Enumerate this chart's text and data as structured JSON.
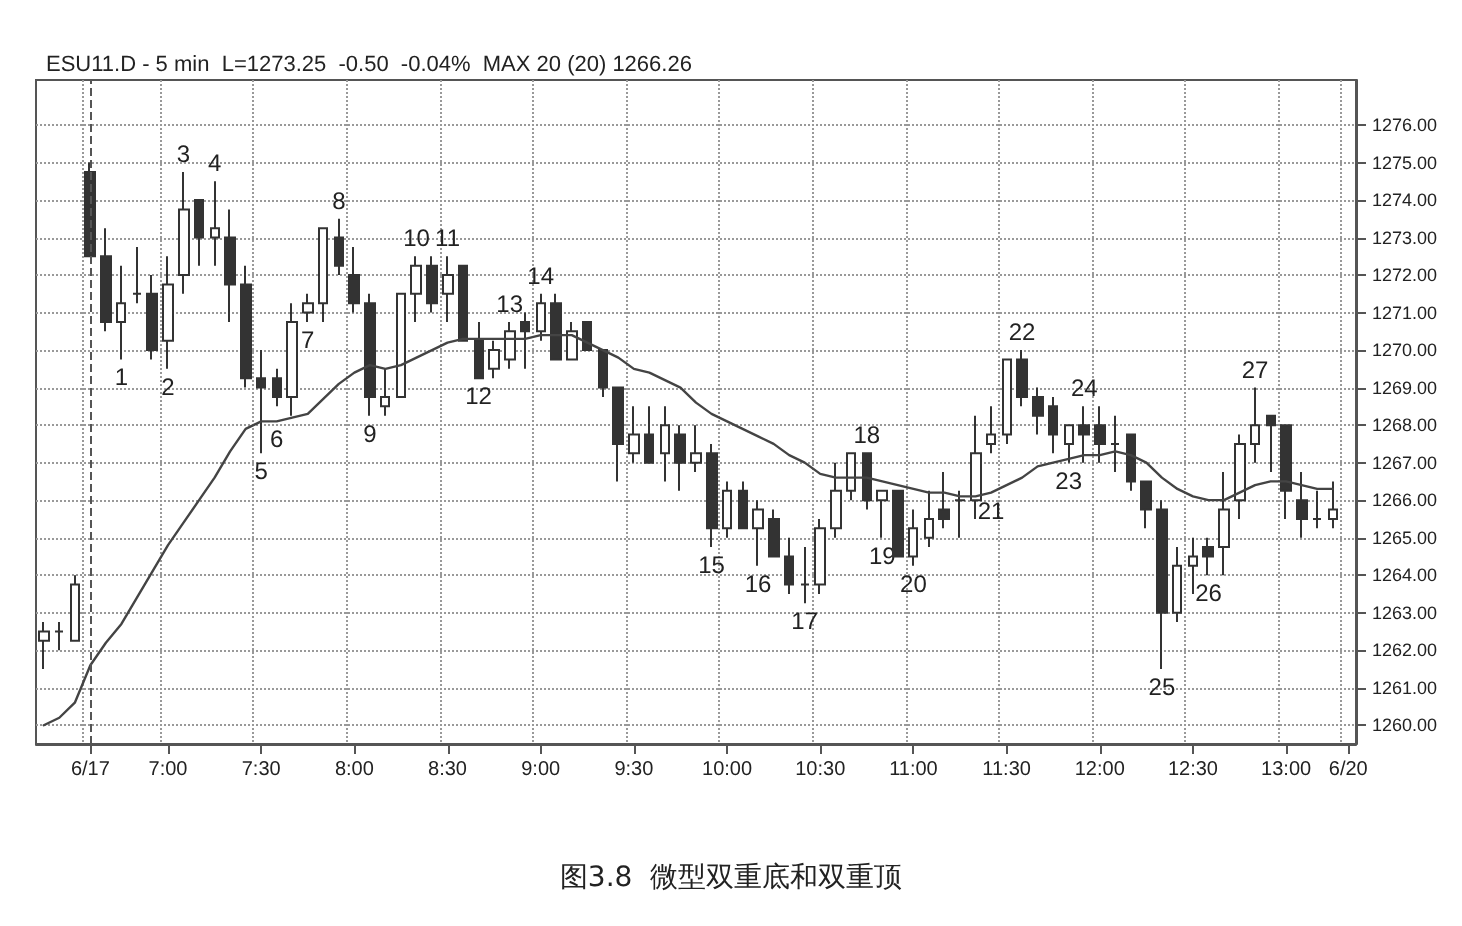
{
  "chart_data": {
    "type": "candlestick",
    "title": "图3.8  微型双重底和双重顶",
    "subtitle": "ESU11.D - 5 min  L=1273.25  -0.50  -0.04%  MAX 20 (20) 1266.26",
    "categories": [
      null,
      null,
      null,
      "6/17",
      null,
      null,
      null,
      null,
      "7:00",
      null,
      null,
      null,
      null,
      null,
      "7:30",
      null,
      null,
      null,
      null,
      null,
      "8:00",
      null,
      null,
      null,
      null,
      null,
      "8:30",
      null,
      null,
      null,
      null,
      null,
      "9:00",
      null,
      null,
      null,
      null,
      null,
      "9:30",
      null,
      null,
      null,
      null,
      null,
      "10:00",
      null,
      null,
      null,
      null,
      null,
      "10:30",
      null,
      null,
      null,
      null,
      null,
      "11:00",
      null,
      null,
      null,
      null,
      null,
      "11:30",
      null,
      null,
      null,
      null,
      null,
      "12:00",
      null,
      null,
      null,
      null,
      null,
      "12:30",
      null,
      null,
      null,
      null,
      null,
      "13:00",
      null,
      null,
      null,
      "6/20"
    ],
    "color": "#333333",
    "ohlc": [
      [
        1262.25,
        1262.75,
        1261.5,
        1262.5
      ],
      [
        1262.5,
        1262.75,
        1262.0,
        1262.5
      ],
      [
        1262.25,
        1264.0,
        1262.25,
        1263.75
      ],
      [
        1274.75,
        1275.0,
        1272.5,
        1272.5
      ],
      [
        1272.5,
        1273.25,
        1270.5,
        1270.75
      ],
      [
        1270.75,
        1272.25,
        1269.75,
        1271.25
      ],
      [
        1271.5,
        1272.75,
        1271.25,
        1271.5
      ],
      [
        1271.5,
        1272.0,
        1269.75,
        1270.0
      ],
      [
        1270.25,
        1272.5,
        1269.5,
        1271.75
      ],
      [
        1272.0,
        1274.75,
        1271.5,
        1273.75
      ],
      [
        1274.0,
        1274.0,
        1272.25,
        1273.0
      ],
      [
        1273.0,
        1274.5,
        1272.25,
        1273.25
      ],
      [
        1273.0,
        1273.75,
        1270.75,
        1271.75
      ],
      [
        1271.75,
        1272.25,
        1269.0,
        1269.25
      ],
      [
        1269.25,
        1270.0,
        1267.25,
        1269.0
      ],
      [
        1269.25,
        1269.5,
        1268.5,
        1268.75
      ],
      [
        1268.75,
        1271.25,
        1268.25,
        1270.75
      ],
      [
        1271.0,
        1271.5,
        1270.75,
        1271.25
      ],
      [
        1271.25,
        1273.25,
        1270.75,
        1273.25
      ],
      [
        1273.0,
        1273.5,
        1272.0,
        1272.25
      ],
      [
        1272.0,
        1272.75,
        1271.0,
        1271.25
      ],
      [
        1271.25,
        1271.5,
        1268.25,
        1268.75
      ],
      [
        1268.5,
        1269.5,
        1268.25,
        1268.75
      ],
      [
        1268.75,
        1271.5,
        1268.75,
        1271.5
      ],
      [
        1271.5,
        1272.5,
        1270.75,
        1272.25
      ],
      [
        1272.25,
        1272.5,
        1271.0,
        1271.25
      ],
      [
        1271.5,
        1272.5,
        1270.75,
        1272.0
      ],
      [
        1272.25,
        1272.25,
        1270.25,
        1270.25
      ],
      [
        1270.25,
        1270.75,
        1269.25,
        1269.25
      ],
      [
        1269.5,
        1270.25,
        1269.25,
        1270.0
      ],
      [
        1269.75,
        1270.75,
        1269.5,
        1270.5
      ],
      [
        1270.75,
        1271.0,
        1269.5,
        1270.5
      ],
      [
        1270.5,
        1271.5,
        1270.25,
        1271.25
      ],
      [
        1271.25,
        1271.5,
        1269.75,
        1269.75
      ],
      [
        1269.75,
        1270.75,
        1269.75,
        1270.5
      ],
      [
        1270.75,
        1270.75,
        1270.0,
        1270.0
      ],
      [
        1270.0,
        1270.0,
        1268.75,
        1269.0
      ],
      [
        1269.0,
        1269.0,
        1266.5,
        1267.5
      ],
      [
        1267.25,
        1268.5,
        1267.0,
        1267.75
      ],
      [
        1267.75,
        1268.5,
        1267.0,
        1267.0
      ],
      [
        1267.25,
        1268.5,
        1266.5,
        1268.0
      ],
      [
        1267.75,
        1268.0,
        1266.25,
        1267.0
      ],
      [
        1267.0,
        1268.0,
        1266.75,
        1267.25
      ],
      [
        1267.25,
        1267.5,
        1264.75,
        1265.25
      ],
      [
        1265.25,
        1266.5,
        1265.0,
        1266.25
      ],
      [
        1266.25,
        1266.5,
        1265.25,
        1265.25
      ],
      [
        1265.25,
        1266.0,
        1264.25,
        1265.75
      ],
      [
        1265.5,
        1265.75,
        1264.5,
        1264.5
      ],
      [
        1264.5,
        1265.0,
        1263.5,
        1263.75
      ],
      [
        1263.75,
        1264.75,
        1263.25,
        1263.75
      ],
      [
        1263.75,
        1265.5,
        1263.5,
        1265.25
      ],
      [
        1265.25,
        1267.0,
        1265.0,
        1266.25
      ],
      [
        1266.25,
        1267.25,
        1266.0,
        1267.25
      ],
      [
        1267.25,
        1267.25,
        1265.75,
        1266.0
      ],
      [
        1266.0,
        1266.25,
        1265.0,
        1266.25
      ],
      [
        1266.25,
        1266.25,
        1264.5,
        1264.5
      ],
      [
        1264.5,
        1265.75,
        1264.25,
        1265.25
      ],
      [
        1265.0,
        1266.25,
        1264.75,
        1265.5
      ],
      [
        1265.75,
        1266.75,
        1265.25,
        1265.5
      ],
      [
        1266.0,
        1266.25,
        1265.0,
        1266.0
      ],
      [
        1266.0,
        1268.25,
        1265.5,
        1267.25
      ],
      [
        1267.5,
        1268.5,
        1267.25,
        1267.75
      ],
      [
        1267.75,
        1269.75,
        1267.5,
        1269.75
      ],
      [
        1269.75,
        1270.0,
        1268.5,
        1268.75
      ],
      [
        1268.75,
        1269.0,
        1267.75,
        1268.25
      ],
      [
        1268.5,
        1268.75,
        1267.25,
        1267.75
      ],
      [
        1267.5,
        1268.0,
        1267.0,
        1268.0
      ],
      [
        1268.0,
        1268.5,
        1267.0,
        1267.75
      ],
      [
        1268.0,
        1268.5,
        1267.0,
        1267.5
      ],
      [
        1267.5,
        1268.25,
        1266.75,
        1267.5
      ],
      [
        1267.75,
        1267.75,
        1266.25,
        1266.5
      ],
      [
        1266.5,
        1266.5,
        1265.25,
        1265.75
      ],
      [
        1265.75,
        1266.0,
        1261.5,
        1263.0
      ],
      [
        1263.0,
        1264.75,
        1262.75,
        1264.25
      ],
      [
        1264.25,
        1265.0,
        1263.5,
        1264.5
      ],
      [
        1264.75,
        1265.0,
        1264.0,
        1264.5
      ],
      [
        1264.75,
        1266.75,
        1264.0,
        1265.75
      ],
      [
        1266.0,
        1267.75,
        1265.5,
        1267.5
      ],
      [
        1267.5,
        1269.0,
        1267.0,
        1268.0
      ],
      [
        1268.25,
        1268.25,
        1266.75,
        1268.0
      ],
      [
        1268.0,
        1268.0,
        1265.5,
        1266.25
      ],
      [
        1266.0,
        1266.75,
        1265.0,
        1265.5
      ],
      [
        1265.5,
        1266.25,
        1265.25,
        1265.5
      ],
      [
        1265.5,
        1266.5,
        1265.25,
        1265.75
      ],
      null
    ],
    "value_labels": [
      null,
      null,
      null,
      null,
      null,
      "1",
      null,
      null,
      "2",
      "3",
      null,
      "4",
      null,
      null,
      "5",
      "6",
      null,
      "7",
      null,
      "8",
      null,
      "9",
      null,
      null,
      "10",
      null,
      "11",
      null,
      "12",
      null,
      "13",
      null,
      "14",
      null,
      null,
      null,
      null,
      null,
      null,
      null,
      null,
      null,
      null,
      "15",
      null,
      null,
      "16",
      null,
      null,
      "17",
      null,
      null,
      null,
      "18",
      "19",
      null,
      "20",
      null,
      null,
      null,
      null,
      "21",
      null,
      "22",
      null,
      null,
      "23",
      "24",
      null,
      null,
      null,
      null,
      "25",
      null,
      null,
      "26",
      null,
      null,
      "27",
      null,
      null,
      null,
      null,
      null,
      null
    ],
    "series": [
      {
        "type": "line",
        "color": "#444444",
        "values": [
          1260.0,
          1260.2,
          1260.6,
          1261.6,
          1262.2,
          1262.7,
          1263.4,
          1264.1,
          1264.8,
          1265.4,
          1266.0,
          1266.6,
          1267.3,
          1267.9,
          1268.1,
          1268.1,
          1268.2,
          1268.3,
          1268.7,
          1269.1,
          1269.4,
          1269.6,
          1269.5,
          1269.6,
          1269.8,
          1270.0,
          1270.2,
          1270.3,
          1270.3,
          1270.3,
          1270.3,
          1270.3,
          1270.4,
          1270.4,
          1270.4,
          1270.2,
          1270.0,
          1269.8,
          1269.5,
          1269.4,
          1269.2,
          1269.0,
          1268.6,
          1268.3,
          1268.1,
          1267.9,
          1267.7,
          1267.5,
          1267.2,
          1267.0,
          1266.7,
          1266.6,
          1266.6,
          1266.6,
          1266.5,
          1266.4,
          1266.3,
          1266.2,
          1266.2,
          1266.1,
          1266.1,
          1266.2,
          1266.4,
          1266.6,
          1266.9,
          1267.0,
          1267.1,
          1267.2,
          1267.2,
          1267.3,
          1267.2,
          1267.0,
          1266.6,
          1266.3,
          1266.1,
          1266.0,
          1266.0,
          1266.2,
          1266.4,
          1266.5,
          1266.5,
          1266.4,
          1266.3,
          1266.3,
          null
        ]
      }
    ],
    "ref_lines": [
      {
        "axis": "x",
        "value": "6/17",
        "line_style": "dashed",
        "color": "#555555"
      }
    ],
    "ylim": [
      1259.5,
      1277.2
    ],
    "yticks": [
      {
        "value": 1260,
        "label": "1260.00"
      },
      {
        "value": 1261,
        "label": "1261.00"
      },
      {
        "value": 1262,
        "label": "1262.00"
      },
      {
        "value": 1263,
        "label": "1263.00"
      },
      {
        "value": 1264,
        "label": "1264.00"
      },
      {
        "value": 1265,
        "label": "1265.00"
      },
      {
        "value": 1266,
        "label": "1266.00"
      },
      {
        "value": 1267,
        "label": "1267.00"
      },
      {
        "value": 1268,
        "label": "1268.00"
      },
      {
        "value": 1269,
        "label": "1269.00"
      },
      {
        "value": 1270,
        "label": "1270.00"
      },
      {
        "value": 1271,
        "label": "1271.00"
      },
      {
        "value": 1272,
        "label": "1272.00"
      },
      {
        "value": 1273,
        "label": "1273.00"
      },
      {
        "value": 1274,
        "label": "1274.00"
      },
      {
        "value": 1275,
        "label": "1275.00"
      },
      {
        "value": 1276,
        "label": "1276.00"
      }
    ],
    "grid": true,
    "marker": "none",
    "line_style": "solid"
  }
}
